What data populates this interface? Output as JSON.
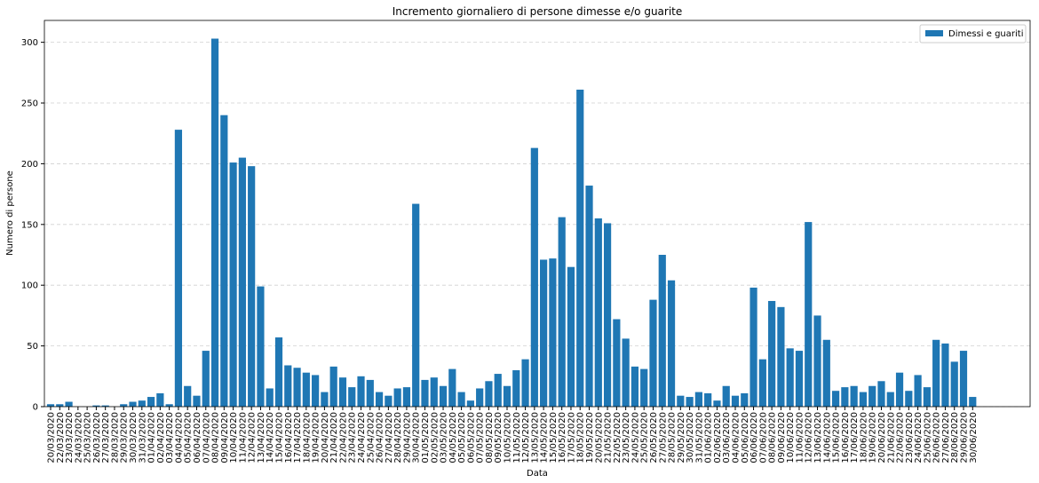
{
  "chart_data": {
    "type": "bar",
    "title": "Incremento giornaliero di persone dimesse e/o guarite",
    "x_label": "Data",
    "y_label": "Numero di persone",
    "categories": [
      "20/03/2020",
      "22/03/2020",
      "23/03/2020",
      "24/03/2020",
      "25/03/2020",
      "26/03/2020",
      "27/03/2020",
      "28/03/2020",
      "29/03/2020",
      "30/03/2020",
      "31/03/2020",
      "01/04/2020",
      "02/04/2020",
      "03/04/2020",
      "04/04/2020",
      "05/04/2020",
      "06/04/2020",
      "07/04/2020",
      "08/04/2020",
      "09/04/2020",
      "10/04/2020",
      "11/04/2020",
      "12/04/2020",
      "13/04/2020",
      "14/04/2020",
      "15/04/2020",
      "16/04/2020",
      "17/04/2020",
      "18/04/2020",
      "19/04/2020",
      "20/04/2020",
      "21/04/2020",
      "22/04/2020",
      "23/04/2020",
      "24/04/2020",
      "25/04/2020",
      "26/04/2020",
      "27/04/2020",
      "28/04/2020",
      "29/04/2020",
      "30/04/2020",
      "01/05/2020",
      "02/05/2020",
      "03/05/2020",
      "04/05/2020",
      "05/05/2020",
      "06/05/2020",
      "07/05/2020",
      "08/05/2020",
      "09/05/2020",
      "10/05/2020",
      "11/05/2020",
      "12/05/2020",
      "13/05/2020",
      "14/05/2020",
      "15/05/2020",
      "16/05/2020",
      "17/05/2020",
      "18/05/2020",
      "19/05/2020",
      "20/05/2020",
      "21/05/2020",
      "22/05/2020",
      "23/05/2020",
      "24/05/2020",
      "25/05/2020",
      "26/05/2020",
      "27/05/2020",
      "28/05/2020",
      "29/05/2020",
      "30/05/2020",
      "31/05/2020",
      "01/06/2020",
      "02/06/2020",
      "03/06/2020",
      "04/06/2020",
      "05/06/2020",
      "06/06/2020",
      "07/06/2020",
      "08/06/2020",
      "09/06/2020",
      "10/06/2020",
      "11/06/2020",
      "12/06/2020",
      "13/06/2020",
      "14/06/2020",
      "15/06/2020",
      "16/06/2020",
      "17/06/2020",
      "18/06/2020",
      "19/06/2020",
      "20/06/2020",
      "21/06/2020",
      "22/06/2020",
      "23/06/2020",
      "24/06/2020",
      "25/06/2020",
      "26/06/2020",
      "27/06/2020",
      "28/06/2020",
      "29/06/2020",
      "30/06/2020"
    ],
    "series": [
      {
        "name": "Dimessi e guariti",
        "color": "#1f77b4",
        "values": [
          2,
          2,
          4,
          0,
          0,
          1,
          1,
          0,
          2,
          4,
          5,
          8,
          11,
          2,
          228,
          17,
          9,
          46,
          303,
          240,
          201,
          205,
          198,
          99,
          15,
          57,
          34,
          32,
          28,
          26,
          12,
          33,
          24,
          16,
          25,
          22,
          12,
          9,
          15,
          16,
          167,
          22,
          24,
          17,
          31,
          12,
          5,
          15,
          21,
          27,
          17,
          30,
          39,
          213,
          121,
          122,
          156,
          115,
          261,
          182,
          155,
          151,
          72,
          56,
          33,
          31,
          88,
          125,
          104,
          9,
          8,
          12,
          11,
          5,
          17,
          9,
          11,
          98,
          39,
          87,
          82,
          48,
          46,
          152,
          75,
          55,
          13,
          16,
          17,
          12,
          17,
          21,
          12,
          28,
          13,
          26,
          16,
          55,
          52,
          37,
          46,
          8
        ]
      }
    ],
    "ylim": [
      0,
      318
    ],
    "yticks": [
      0,
      50,
      100,
      150,
      200,
      250,
      300
    ],
    "grid": true,
    "legend": "upper right"
  }
}
